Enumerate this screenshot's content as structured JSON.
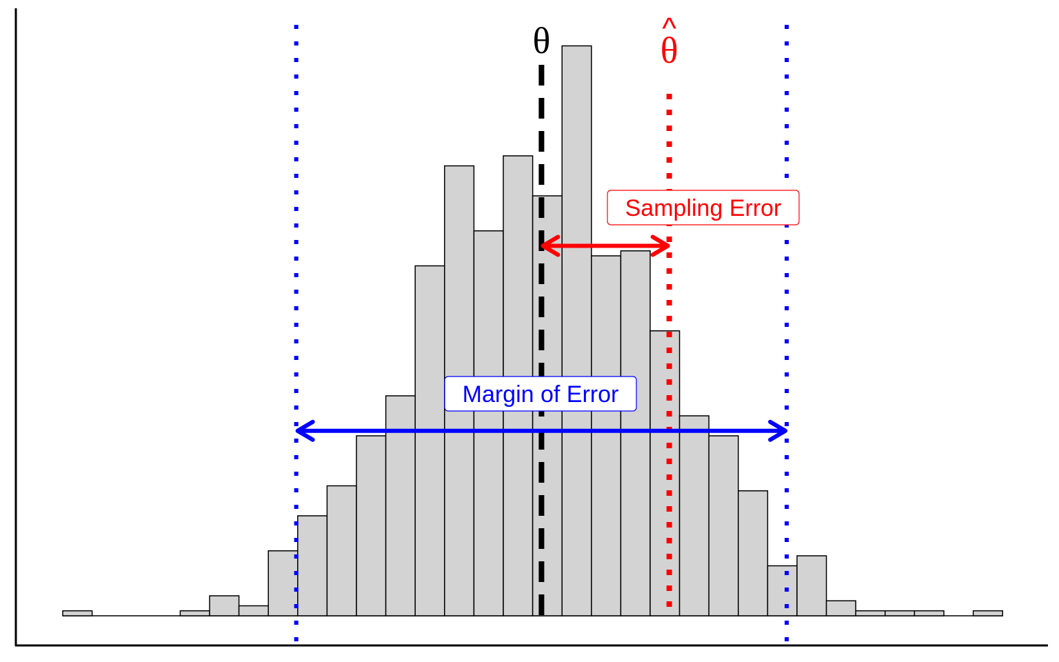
{
  "chart_data": {
    "type": "bar",
    "title": "",
    "xlabel": "",
    "ylabel": "",
    "grid": false,
    "legend": "none",
    "bins": [
      {
        "index": 0,
        "count": 1
      },
      {
        "index": 1,
        "count": 0
      },
      {
        "index": 2,
        "count": 0
      },
      {
        "index": 3,
        "count": 0
      },
      {
        "index": 4,
        "count": 1
      },
      {
        "index": 5,
        "count": 4
      },
      {
        "index": 6,
        "count": 2
      },
      {
        "index": 7,
        "count": 13
      },
      {
        "index": 8,
        "count": 20
      },
      {
        "index": 9,
        "count": 26
      },
      {
        "index": 10,
        "count": 36
      },
      {
        "index": 11,
        "count": 44
      },
      {
        "index": 12,
        "count": 70
      },
      {
        "index": 13,
        "count": 90
      },
      {
        "index": 14,
        "count": 77
      },
      {
        "index": 15,
        "count": 92
      },
      {
        "index": 16,
        "count": 84
      },
      {
        "index": 17,
        "count": 114
      },
      {
        "index": 18,
        "count": 72
      },
      {
        "index": 19,
        "count": 73
      },
      {
        "index": 20,
        "count": 57
      },
      {
        "index": 21,
        "count": 40
      },
      {
        "index": 22,
        "count": 36
      },
      {
        "index": 23,
        "count": 25
      },
      {
        "index": 24,
        "count": 10
      },
      {
        "index": 25,
        "count": 12
      },
      {
        "index": 26,
        "count": 3
      },
      {
        "index": 27,
        "count": 1
      },
      {
        "index": 28,
        "count": 1
      },
      {
        "index": 29,
        "count": 1
      },
      {
        "index": 30,
        "count": 0
      },
      {
        "index": 31,
        "count": 1
      }
    ],
    "x_range": [
      0,
      32
    ],
    "y_range": [
      0,
      114
    ],
    "reference_lines": {
      "theta": {
        "x": 16.3,
        "label": "θ",
        "color": "#000000",
        "style": "dashed"
      },
      "theta_hat": {
        "x": 20.65,
        "label": "θ",
        "hat": "^",
        "color": "#ff0000",
        "style": "dotted"
      },
      "interval_lower": {
        "x": 7.95,
        "color": "#0000ff",
        "style": "dotted"
      },
      "interval_upper": {
        "x": 24.65,
        "color": "#0000ff",
        "style": "dotted"
      }
    },
    "annotations": {
      "sampling_error": {
        "label": "Sampling Error",
        "color": "#ff0000",
        "from": 16.3,
        "to": 20.65,
        "y": 74
      },
      "margin_of_error": {
        "label": "Margin of Error",
        "color": "#0000ff",
        "from": 7.95,
        "to": 24.65,
        "y": 37
      }
    },
    "colors": {
      "bar_fill": "#d3d3d3",
      "bar_stroke": "#000000",
      "axis": "#000000"
    }
  }
}
